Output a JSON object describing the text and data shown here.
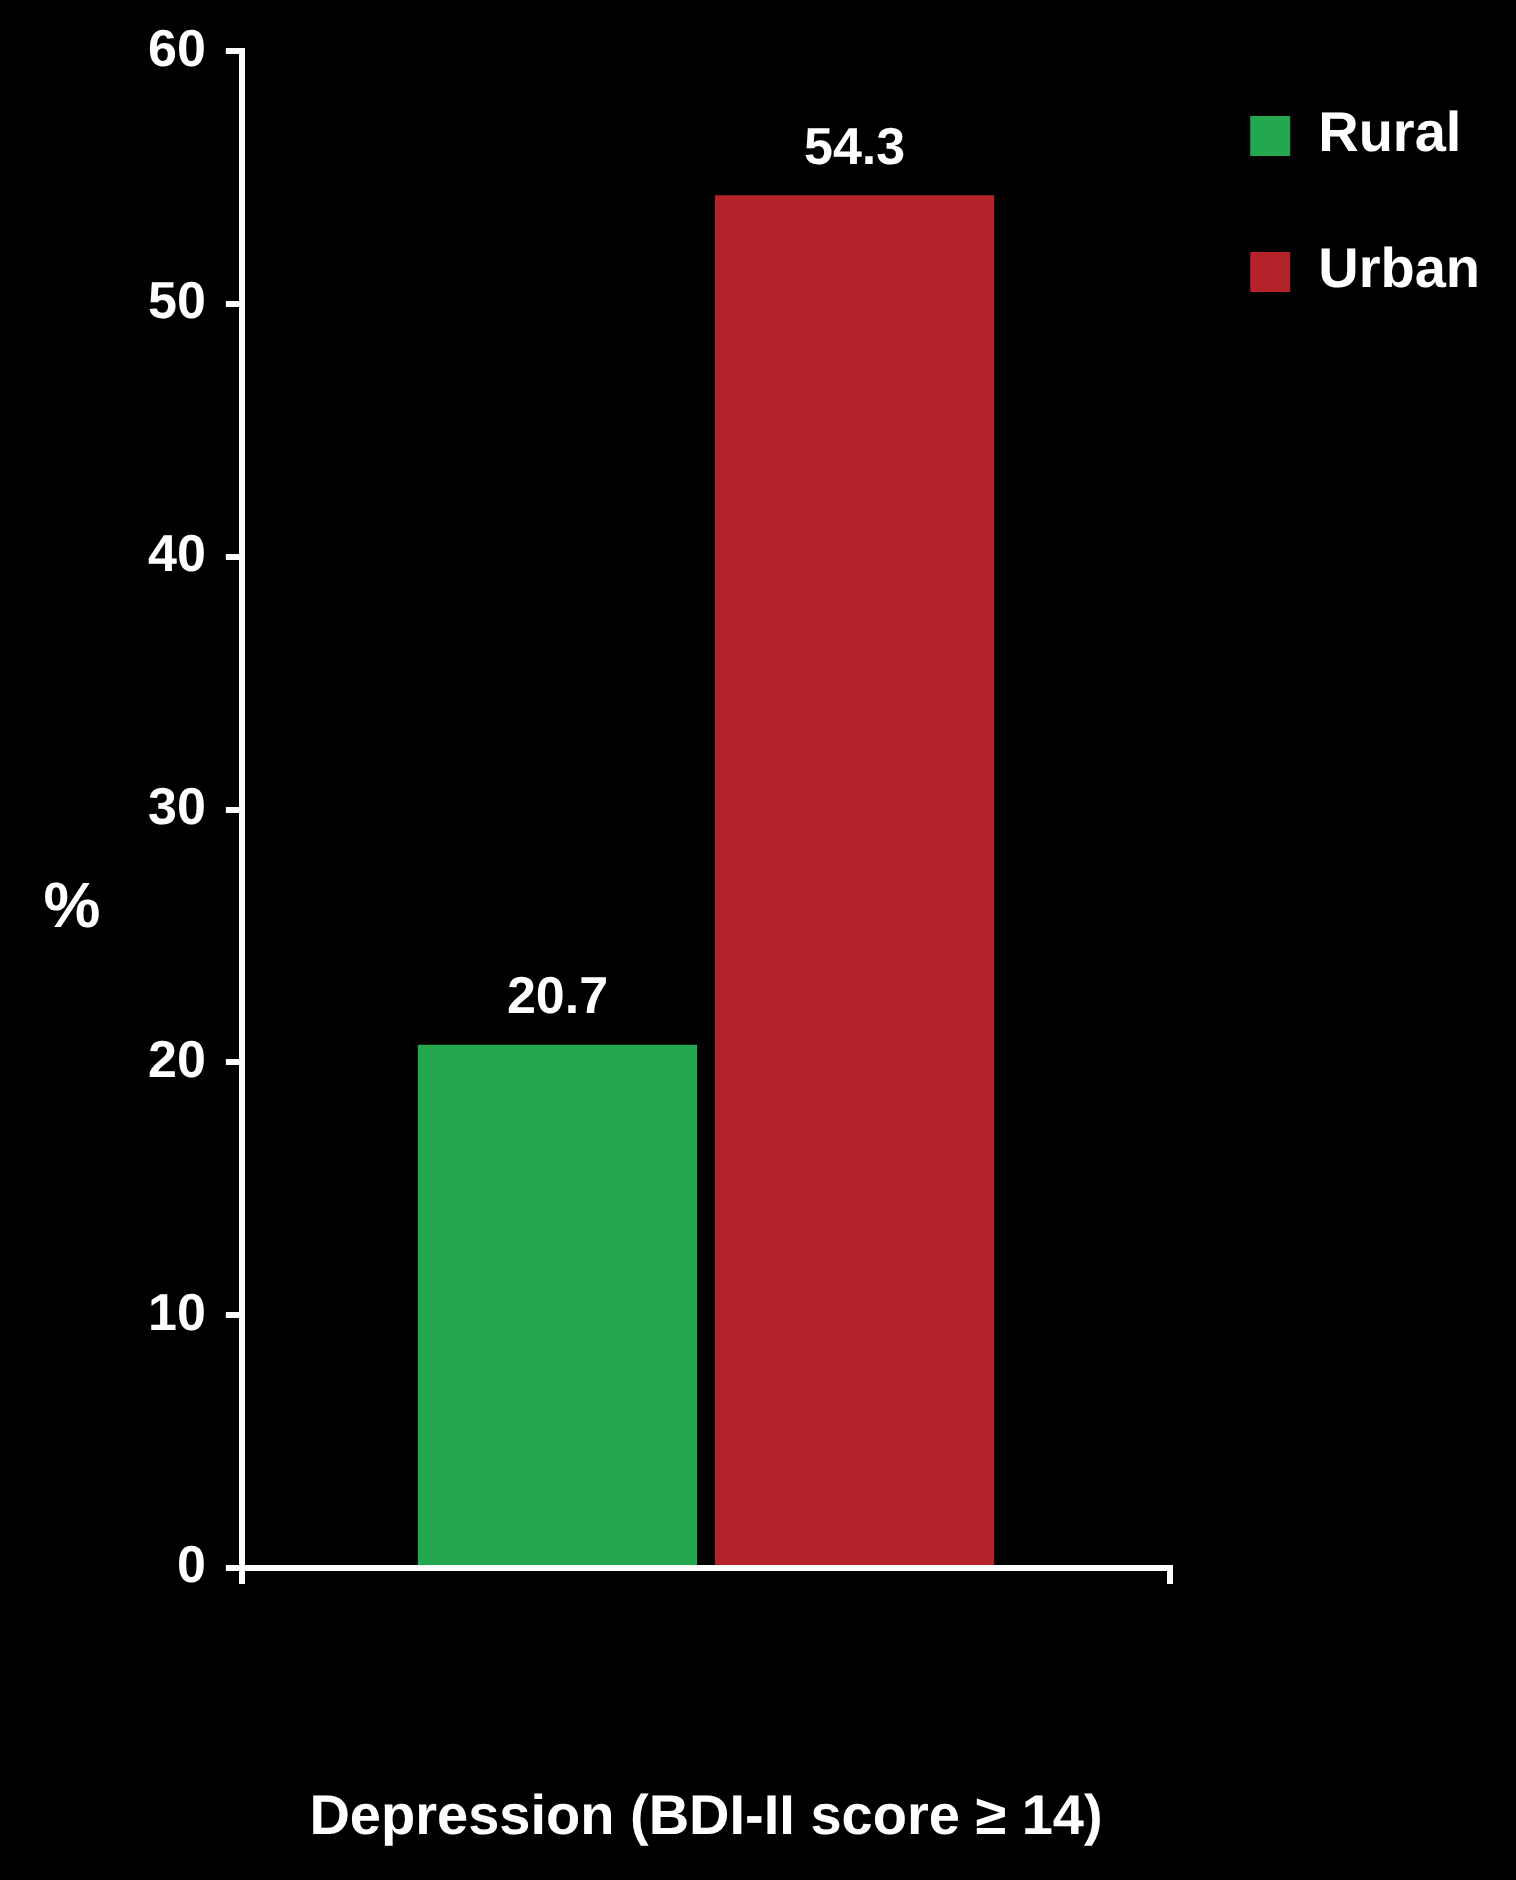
{
  "chart_data": {
    "type": "bar",
    "xlabel": "Depression (BDI-II score ≥ 14)",
    "ylabel": "%",
    "categories": [
      null
    ],
    "series": [
      {
        "name": "Rural",
        "color": "#23a84f",
        "values": [
          20.7
        ]
      },
      {
        "name": "Urban",
        "color": "#b5232a",
        "values": [
          54.3
        ]
      }
    ],
    "ylim": [
      0,
      60
    ],
    "yticks": [
      0,
      10,
      20,
      30,
      40,
      50,
      60
    ],
    "grid": false,
    "legend": "top right",
    "data_labels": true
  }
}
